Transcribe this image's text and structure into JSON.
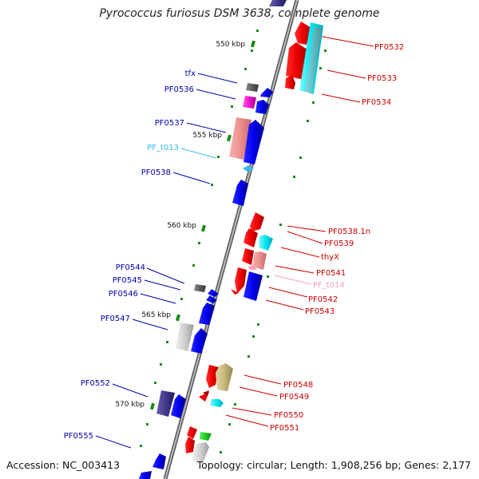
{
  "title": "Pyrococcus furiosus DSM 3638, complete genome",
  "accession": "Accession: NC_003413",
  "summary": "Topology: circular; Length: 1,908,256 bp; Genes: 2,177",
  "scale_labels": [
    "550 kbp",
    "555 kbp",
    "560 kbp",
    "565 kbp",
    "570 kbp"
  ],
  "colors": {
    "backbone": "#8a8a8a",
    "forward_label": "#cc0000",
    "reverse_label": "#0000aa",
    "trna_label": "#33bbee",
    "pseudo_label": "#f4a0b8",
    "tick": "#1a8a1a"
  },
  "genes_forward": [
    {
      "name": "PF0532"
    },
    {
      "name": "PF0533"
    },
    {
      "name": "PF0534"
    },
    {
      "name": "PF0538.1n"
    },
    {
      "name": "PF0539"
    },
    {
      "name": "thyX"
    },
    {
      "name": "PF0541"
    },
    {
      "name": "PF_t014"
    },
    {
      "name": "PF0542"
    },
    {
      "name": "PF0543"
    },
    {
      "name": "PF0548"
    },
    {
      "name": "PF0549"
    },
    {
      "name": "PF0550"
    },
    {
      "name": "PF0551"
    }
  ],
  "genes_reverse": [
    {
      "name": "tfx"
    },
    {
      "name": "PF0536"
    },
    {
      "name": "PF0537"
    },
    {
      "name": "PF_t013"
    },
    {
      "name": "PF0538"
    },
    {
      "name": "PF0544"
    },
    {
      "name": "PF0545"
    },
    {
      "name": "PF0546"
    },
    {
      "name": "PF0547"
    },
    {
      "name": "PF0552"
    },
    {
      "name": "PF0555"
    }
  ]
}
